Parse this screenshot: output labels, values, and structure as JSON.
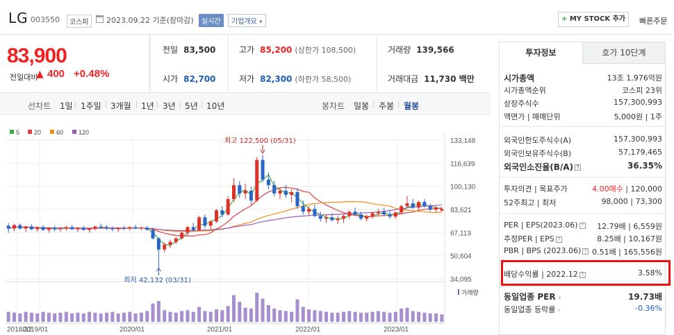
{
  "header": {
    "name": "LG",
    "code": "003550",
    "market": "코스피",
    "date": "2023.09.22 기준(장마감)",
    "realtime": "실시간",
    "company_info": "기업개요",
    "mystock": "MY STOCK 추가",
    "quick_order": "빠른주문"
  },
  "price": {
    "current": "83,900",
    "prev_label": "전일대비",
    "change": "400",
    "change_pct": "+0.48%"
  },
  "stats": {
    "prev_close": {
      "label": "전일",
      "value": "83,500"
    },
    "high": {
      "label": "고가",
      "value": "85,200",
      "sub": "(상한가 108,500)"
    },
    "volume": {
      "label": "거래량",
      "value": "139,566"
    },
    "open": {
      "label": "시가",
      "value": "82,700"
    },
    "low": {
      "label": "저가",
      "value": "82,300",
      "sub": "(하한가 58,500)"
    },
    "amount": {
      "label": "거래대금",
      "value": "11,730 백만"
    }
  },
  "range_bar": {
    "line_label": "선차트",
    "line_items": [
      "1일",
      "1주일",
      "3개월",
      "1년",
      "3년",
      "5년",
      "10년"
    ],
    "candle_label": "봉차트",
    "candle_items": [
      "일봉",
      "주봉",
      "월봉"
    ],
    "candle_active": "월봉"
  },
  "chart_data": {
    "type": "candlestick",
    "legend": [
      {
        "name": "5",
        "color": "#3cb043"
      },
      {
        "name": "20",
        "color": "#e04040"
      },
      {
        "name": "60",
        "color": "#f08c1a"
      },
      {
        "name": "120",
        "color": "#9b59b6"
      }
    ],
    "y_ticks": [
      "133,148",
      "116,639",
      "100,130",
      "83,621",
      "67,113",
      "50,604",
      "34,095"
    ],
    "x_ticks": [
      "2018/12",
      "2019/01",
      "2020/01",
      "2021/01",
      "2022/01",
      "2023/01"
    ],
    "annotation_high": "최고 122,500 (05/31)",
    "annotation_low": "최저 42,132 (03/31)",
    "volume_label": "거래량",
    "ylim": [
      34095,
      133148
    ],
    "candles": [
      [
        72000,
        74000,
        67000,
        70000
      ],
      [
        70000,
        73000,
        68000,
        72500
      ],
      [
        72500,
        73500,
        69000,
        70000
      ],
      [
        70000,
        72000,
        67500,
        71500
      ],
      [
        71500,
        73000,
        69000,
        69500
      ],
      [
        69500,
        71500,
        67500,
        71000
      ],
      [
        71000,
        72500,
        68500,
        69000
      ],
      [
        69000,
        71000,
        67000,
        70500
      ],
      [
        70500,
        72000,
        68000,
        69500
      ],
      [
        69500,
        71000,
        67500,
        70000
      ],
      [
        70000,
        72000,
        68500,
        71000
      ],
      [
        71000,
        72500,
        69000,
        69500
      ],
      [
        69500,
        71000,
        67500,
        70500
      ],
      [
        70500,
        72000,
        68500,
        69000
      ],
      [
        69000,
        70500,
        67000,
        70000
      ],
      [
        70000,
        72000,
        68500,
        71500
      ],
      [
        71500,
        73500,
        70000,
        71000
      ],
      [
        71000,
        72500,
        69000,
        70000
      ],
      [
        70000,
        71500,
        68000,
        69500
      ],
      [
        69500,
        71000,
        67500,
        70500
      ],
      [
        70500,
        72000,
        69000,
        70000
      ],
      [
        70000,
        71500,
        68500,
        71000
      ],
      [
        71000,
        72500,
        69500,
        70000
      ],
      [
        70000,
        71500,
        68500,
        70500
      ],
      [
        70500,
        72000,
        69000,
        69000
      ],
      [
        69000,
        70500,
        62000,
        63000
      ],
      [
        63000,
        64000,
        42132,
        55000
      ],
      [
        55000,
        60000,
        53000,
        58500
      ],
      [
        58500,
        62000,
        56000,
        60500
      ],
      [
        60500,
        64000,
        59000,
        63000
      ],
      [
        63000,
        68000,
        62000,
        67000
      ],
      [
        67000,
        72000,
        65000,
        71000
      ],
      [
        71000,
        74000,
        68000,
        69000
      ],
      [
        69000,
        79000,
        68000,
        78000
      ],
      [
        78000,
        80000,
        70000,
        72000
      ],
      [
        72000,
        76000,
        69000,
        75000
      ],
      [
        75000,
        84000,
        74000,
        83000
      ],
      [
        83000,
        86000,
        78000,
        80000
      ],
      [
        80000,
        93000,
        79000,
        91000
      ],
      [
        91000,
        106000,
        89000,
        101000
      ],
      [
        101000,
        104000,
        92000,
        95000
      ],
      [
        95000,
        102000,
        91000,
        97000
      ],
      [
        97000,
        100000,
        87000,
        90000
      ],
      [
        90000,
        121000,
        89000,
        119000
      ],
      [
        119000,
        122500,
        103000,
        105000
      ],
      [
        105000,
        110000,
        98000,
        101000
      ],
      [
        101000,
        104000,
        93000,
        95000
      ],
      [
        95000,
        99000,
        91000,
        97000
      ],
      [
        97000,
        101000,
        92000,
        94000
      ],
      [
        94000,
        98000,
        89000,
        96000
      ],
      [
        96000,
        99000,
        84000,
        86000
      ],
      [
        86000,
        90000,
        80000,
        82000
      ],
      [
        82000,
        86000,
        79000,
        84000
      ],
      [
        84000,
        87000,
        78000,
        79000
      ],
      [
        79000,
        82000,
        75000,
        77000
      ],
      [
        77000,
        80000,
        74000,
        78000
      ],
      [
        78000,
        81000,
        75000,
        76000
      ],
      [
        76000,
        79000,
        73300,
        77000
      ],
      [
        77000,
        80000,
        74000,
        79000
      ],
      [
        79000,
        83000,
        77000,
        82000
      ],
      [
        82000,
        85000,
        79000,
        80000
      ],
      [
        80000,
        82000,
        76000,
        77000
      ],
      [
        77000,
        80000,
        75000,
        78500
      ],
      [
        78500,
        82000,
        77000,
        81000
      ],
      [
        81000,
        84000,
        79000,
        82000
      ],
      [
        82000,
        85000,
        79000,
        80000
      ],
      [
        80000,
        83000,
        77000,
        78500
      ],
      [
        78500,
        82000,
        77000,
        81500
      ],
      [
        81500,
        87000,
        80000,
        86000
      ],
      [
        86000,
        93000,
        85000,
        88000
      ],
      [
        88000,
        91000,
        84000,
        85000
      ],
      [
        85000,
        90000,
        83000,
        89000
      ],
      [
        89000,
        91000,
        85000,
        86000
      ],
      [
        86000,
        88000,
        82000,
        83500
      ],
      [
        83500,
        86000,
        82000,
        85000
      ],
      [
        82700,
        85200,
        82300,
        83900
      ]
    ],
    "volumes": [
      12,
      11,
      10,
      12,
      11,
      10,
      12,
      11,
      10,
      11,
      12,
      10,
      11,
      10,
      12,
      11,
      10,
      11,
      12,
      10,
      11,
      12,
      10,
      11,
      13,
      22,
      25,
      14,
      12,
      11,
      13,
      14,
      12,
      18,
      13,
      12,
      15,
      14,
      19,
      32,
      24,
      17,
      16,
      35,
      28,
      20,
      16,
      14,
      13,
      12,
      27,
      18,
      15,
      14,
      13,
      12,
      11,
      11,
      12,
      13,
      12,
      11,
      11,
      12,
      13,
      12,
      11,
      12,
      16,
      17,
      13,
      12,
      11,
      10,
      10,
      9
    ]
  },
  "right_panel": {
    "tab_active": "투자정보",
    "tab_inactive": "호가 10단계",
    "rows": [
      {
        "k": "시가총액",
        "v": "13조 1,976억원",
        "bold": true
      },
      {
        "k": "시가총액순위",
        "v": "코스피 23위"
      },
      {
        "k": "상장주식수",
        "v": "157,300,993"
      },
      {
        "k": "액면가 | 매매단위",
        "v": "5,000원 | 1주"
      },
      {
        "k": "외국인한도주식수(A)",
        "v": "157,300,993"
      },
      {
        "k": "외국인보유주식수(B)",
        "v": "57,179,465"
      },
      {
        "k": "외국인소진율(B/A)",
        "v": "36.35%",
        "bold": true
      },
      {
        "k": "투자의견 | 목표주가",
        "v_red": "4.00매수",
        "v": " | 120,000"
      },
      {
        "k": "52주최고 | 최저",
        "v": "98,000 | 73,300"
      },
      {
        "k": "PER | EPS(2023.06)",
        "v": "12.79배 | 6,559원"
      },
      {
        "k": "추정PER | EPS",
        "v": "8.25배 | 10,167원"
      },
      {
        "k": "PBR | BPS (2023.06)",
        "v": "0.51배 | 165,556원"
      },
      {
        "k": "배당수익률 | 2022.12",
        "v": "3.58%"
      },
      {
        "k": "동일업종 PER",
        "v": "19.73배",
        "bold": true
      },
      {
        "k": "동일업종 등락률",
        "v": "-0.36%",
        "blue": true
      }
    ]
  }
}
